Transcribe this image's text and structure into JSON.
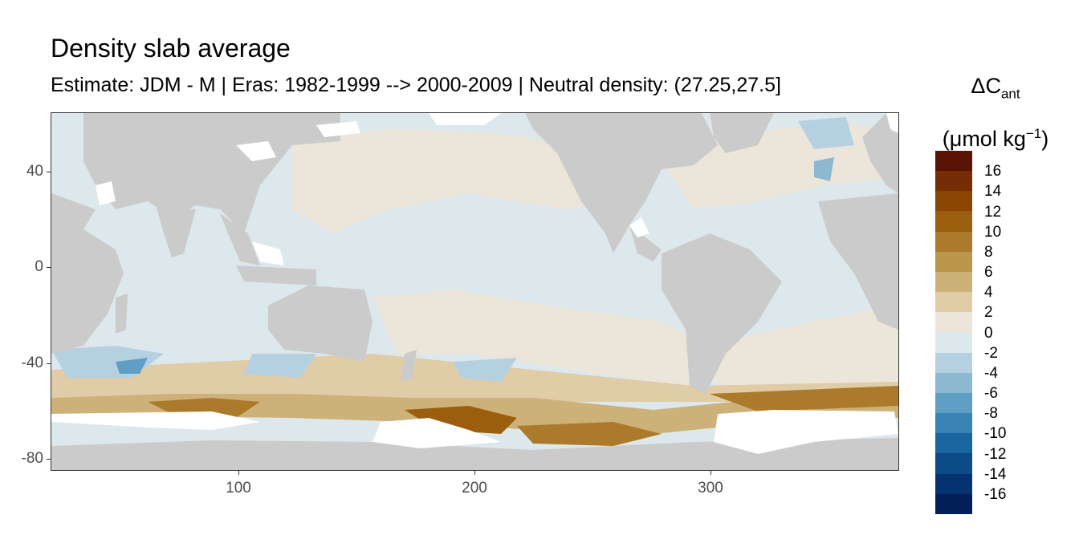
{
  "title": "Density slab average",
  "subtitle": "Estimate: JDM - M | Eras: 1982-1999 --> 2000-2009 | Neutral density: (27.25,27.5]",
  "legend": {
    "title_delta": "ΔC",
    "title_sub": "ant",
    "unit_pre": "(μmol kg",
    "unit_sup": "−1",
    "unit_post": ")",
    "labels": [
      "16",
      "14",
      "12",
      "10",
      "8",
      "6",
      "4",
      "2",
      "0",
      "-2",
      "-4",
      "-6",
      "-8",
      "-10",
      "-12",
      "-14",
      "-16"
    ],
    "colors": [
      "#5a1406",
      "#742d04",
      "#8a4502",
      "#9b5e0f",
      "#ab7a2b",
      "#bb974c",
      "#ccb178",
      "#e0cca7",
      "#ece6da",
      "#dde8ed",
      "#b5d0e1",
      "#8db8d2",
      "#5f9ec5",
      "#3983b5",
      "#1b66a0",
      "#0c4b87",
      "#05336f",
      "#021f5a"
    ]
  },
  "chart_data": {
    "type": "heatmap",
    "title": "Density slab average",
    "subtitle": "Estimate: JDM - M | Eras: 1982-1999 --> 2000-2009 | Neutral density: (27.25,27.5]",
    "xlabel": "",
    "ylabel": "",
    "xlim": [
      20,
      380
    ],
    "ylim": [
      -85,
      65
    ],
    "x_ticks": [
      100,
      200,
      300
    ],
    "y_ticks": [
      40,
      0,
      -40,
      -80
    ],
    "legend_placement": "right",
    "colorbar_range": [
      -18,
      18
    ],
    "colorbar_step": 2,
    "land_color": "#cbcbcb",
    "nodata_color": "#ffffff"
  }
}
